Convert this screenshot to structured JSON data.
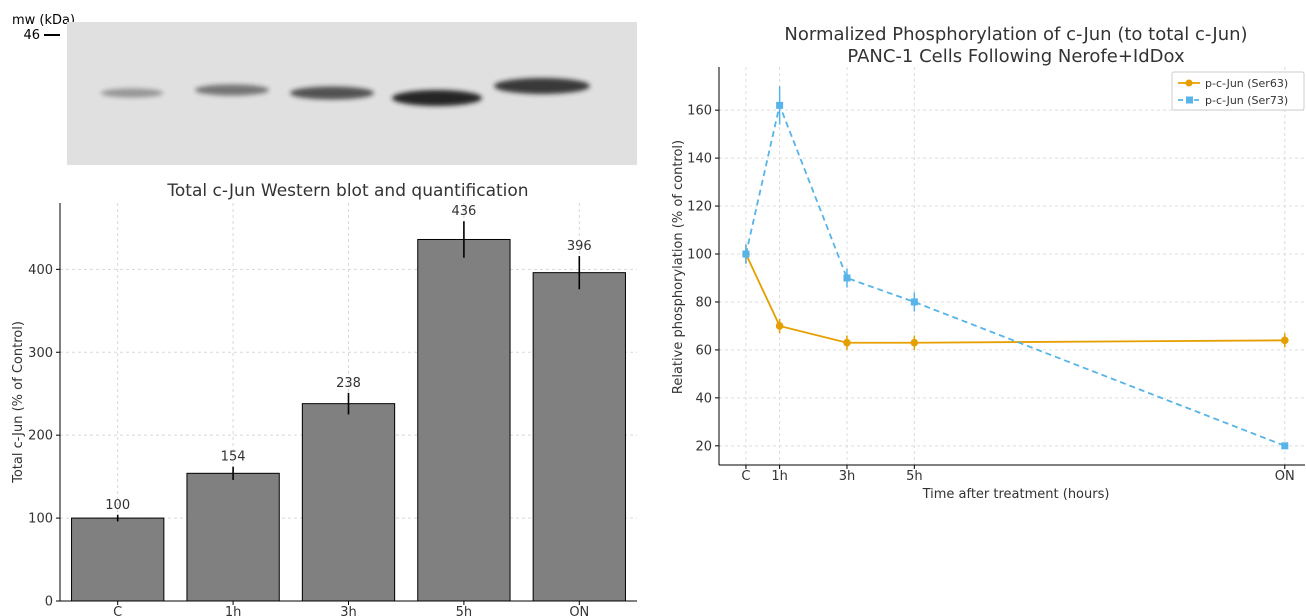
{
  "blot": {
    "mw_label": "mw (kDa)",
    "marker_label": "46",
    "band_count": 5,
    "background_color": "#e0e0e0",
    "band_color": "#1a1a1a"
  },
  "chart_data": [
    {
      "type": "bar",
      "title": "Total c-Jun Western blot and quantification",
      "xlabel": "",
      "ylabel": "Total c-Jun (% of Control)",
      "categories": [
        "C",
        "1h",
        "3h",
        "5h",
        "ON"
      ],
      "values": [
        100,
        154,
        238,
        436,
        396
      ],
      "errors": [
        4,
        8,
        13,
        22,
        20
      ],
      "data_labels": [
        "100",
        "154",
        "238",
        "436",
        "396"
      ],
      "ylim": [
        0,
        480
      ],
      "yticks": [
        0,
        100,
        200,
        300,
        400
      ],
      "grid": true,
      "bar_color": "#808080"
    },
    {
      "type": "line",
      "title": "Normalized Phosphorylation of c-Jun (to total c-Jun)",
      "subtitle": "PANC-1 Cells Following Nerofe+IdDox",
      "xlabel": "Time after treatment (hours)",
      "ylabel": "Relative phosphorylation (% of control)",
      "x": [
        0,
        1,
        3,
        5,
        16
      ],
      "xticklabels": [
        "C",
        "1h",
        "3h",
        "5h",
        "ON"
      ],
      "xlim": [
        -0.8,
        16.6
      ],
      "ylim": [
        12,
        178
      ],
      "yticks": [
        20,
        40,
        60,
        80,
        100,
        120,
        140,
        160
      ],
      "grid": true,
      "legend_position": "top-right",
      "series": [
        {
          "name": "p-c-Jun (Ser63)",
          "values": [
            100,
            70,
            63,
            63,
            64
          ],
          "errors": [
            4,
            3,
            3,
            3,
            3
          ],
          "color": "#e69f00",
          "linestyle": "solid",
          "marker": "circle"
        },
        {
          "name": "p-c-Jun (Ser73)",
          "values": [
            100,
            162,
            90,
            80,
            20
          ],
          "errors": [
            4,
            8,
            4,
            4,
            1
          ],
          "color": "#56b4e9",
          "linestyle": "dashed",
          "marker": "square"
        }
      ]
    }
  ]
}
